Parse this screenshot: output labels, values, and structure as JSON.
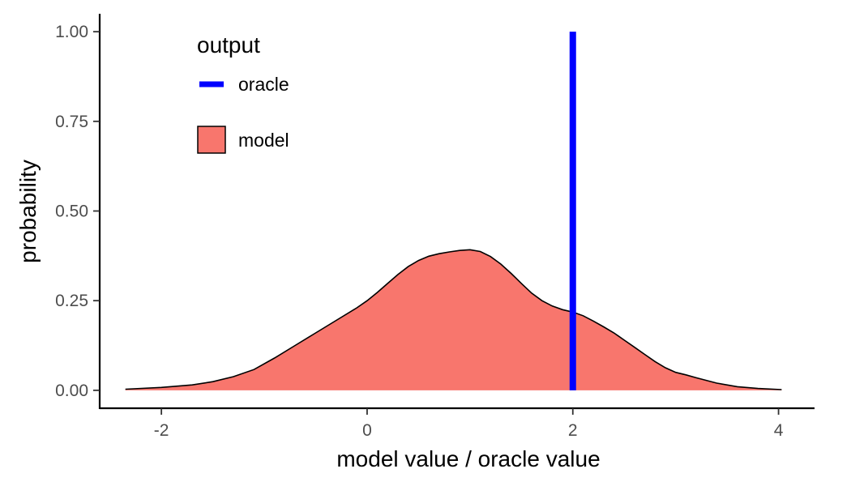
{
  "chart_data": {
    "type": "area",
    "title": "",
    "xlabel": "model value / oracle value",
    "ylabel": "probability",
    "xlim": [
      -2.6,
      4.35
    ],
    "ylim": [
      -0.05,
      1.05
    ],
    "x_ticks": [
      -2,
      0,
      2,
      4
    ],
    "x_tick_labels": [
      "-2",
      "0",
      "2",
      "4"
    ],
    "y_ticks": [
      0,
      0.25,
      0.5,
      0.75,
      1
    ],
    "y_tick_labels": [
      "0.00",
      "0.25",
      "0.50",
      "0.75",
      "1.00"
    ],
    "grid": false,
    "legend": {
      "title": "output",
      "placement": "top-left",
      "entries": [
        {
          "label": "oracle",
          "kind": "line",
          "color": "#0000ff"
        },
        {
          "label": "model",
          "kind": "fill",
          "color": "#f8766d"
        }
      ]
    },
    "series": [
      {
        "name": "model",
        "kind": "density",
        "fill": "#f8766d",
        "stroke": "#000000",
        "x": [
          -2.35,
          -2.0,
          -1.7,
          -1.5,
          -1.3,
          -1.1,
          -0.9,
          -0.7,
          -0.5,
          -0.3,
          -0.1,
          0.0,
          0.1,
          0.2,
          0.3,
          0.4,
          0.5,
          0.6,
          0.7,
          0.8,
          0.9,
          1.0,
          1.1,
          1.2,
          1.3,
          1.4,
          1.5,
          1.6,
          1.7,
          1.8,
          1.9,
          2.0,
          2.1,
          2.2,
          2.3,
          2.4,
          2.5,
          2.6,
          2.7,
          2.8,
          2.9,
          3.0,
          3.1,
          3.2,
          3.4,
          3.6,
          3.8,
          4.03
        ],
        "y": [
          0.003,
          0.008,
          0.015,
          0.024,
          0.038,
          0.058,
          0.09,
          0.125,
          0.16,
          0.195,
          0.23,
          0.25,
          0.273,
          0.298,
          0.323,
          0.345,
          0.362,
          0.374,
          0.381,
          0.386,
          0.39,
          0.392,
          0.387,
          0.373,
          0.352,
          0.326,
          0.298,
          0.271,
          0.25,
          0.235,
          0.225,
          0.218,
          0.208,
          0.193,
          0.177,
          0.16,
          0.14,
          0.12,
          0.1,
          0.08,
          0.063,
          0.05,
          0.043,
          0.035,
          0.02,
          0.01,
          0.005,
          0.002
        ]
      },
      {
        "name": "oracle",
        "kind": "vline",
        "color": "#0000ff",
        "x": 2,
        "y": [
          0,
          1
        ]
      }
    ]
  }
}
